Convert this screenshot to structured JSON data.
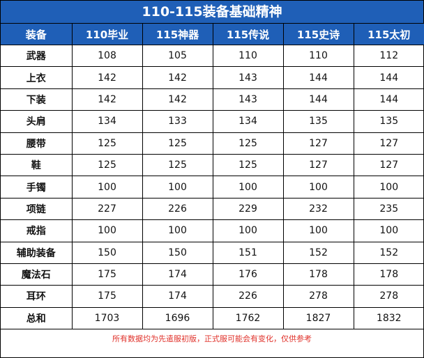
{
  "title": "110-115装备基础精神",
  "columns": [
    "装备",
    "110毕业",
    "115神器",
    "115传说",
    "115史诗",
    "115太初"
  ],
  "rows": [
    {
      "name": "武器",
      "values": [
        "108",
        "105",
        "110",
        "110",
        "112"
      ]
    },
    {
      "name": "上衣",
      "values": [
        "142",
        "142",
        "143",
        "144",
        "144"
      ]
    },
    {
      "name": "下装",
      "values": [
        "142",
        "142",
        "143",
        "144",
        "144"
      ]
    },
    {
      "name": "头肩",
      "values": [
        "134",
        "133",
        "134",
        "135",
        "135"
      ]
    },
    {
      "name": "腰带",
      "values": [
        "125",
        "125",
        "125",
        "127",
        "127"
      ]
    },
    {
      "name": "鞋",
      "values": [
        "125",
        "125",
        "125",
        "127",
        "127"
      ]
    },
    {
      "name": "手镯",
      "values": [
        "100",
        "100",
        "100",
        "100",
        "100"
      ]
    },
    {
      "name": "项链",
      "values": [
        "227",
        "226",
        "229",
        "232",
        "235"
      ]
    },
    {
      "name": "戒指",
      "values": [
        "100",
        "100",
        "100",
        "100",
        "100"
      ]
    },
    {
      "name": "辅助装备",
      "values": [
        "150",
        "150",
        "151",
        "152",
        "152"
      ]
    },
    {
      "name": "魔法石",
      "values": [
        "175",
        "174",
        "176",
        "178",
        "178"
      ]
    },
    {
      "name": "耳环",
      "values": [
        "175",
        "174",
        "226",
        "278",
        "278"
      ]
    },
    {
      "name": "总和",
      "values": [
        "1703",
        "1696",
        "1762",
        "1827",
        "1832"
      ]
    }
  ],
  "footer": "所有数据均为先遣服初版，正式服可能会有变化，仅供参考",
  "colors": {
    "header_bg": "#1f5fb7",
    "header_text": "#ffffff",
    "footer_text": "#e0322b"
  }
}
